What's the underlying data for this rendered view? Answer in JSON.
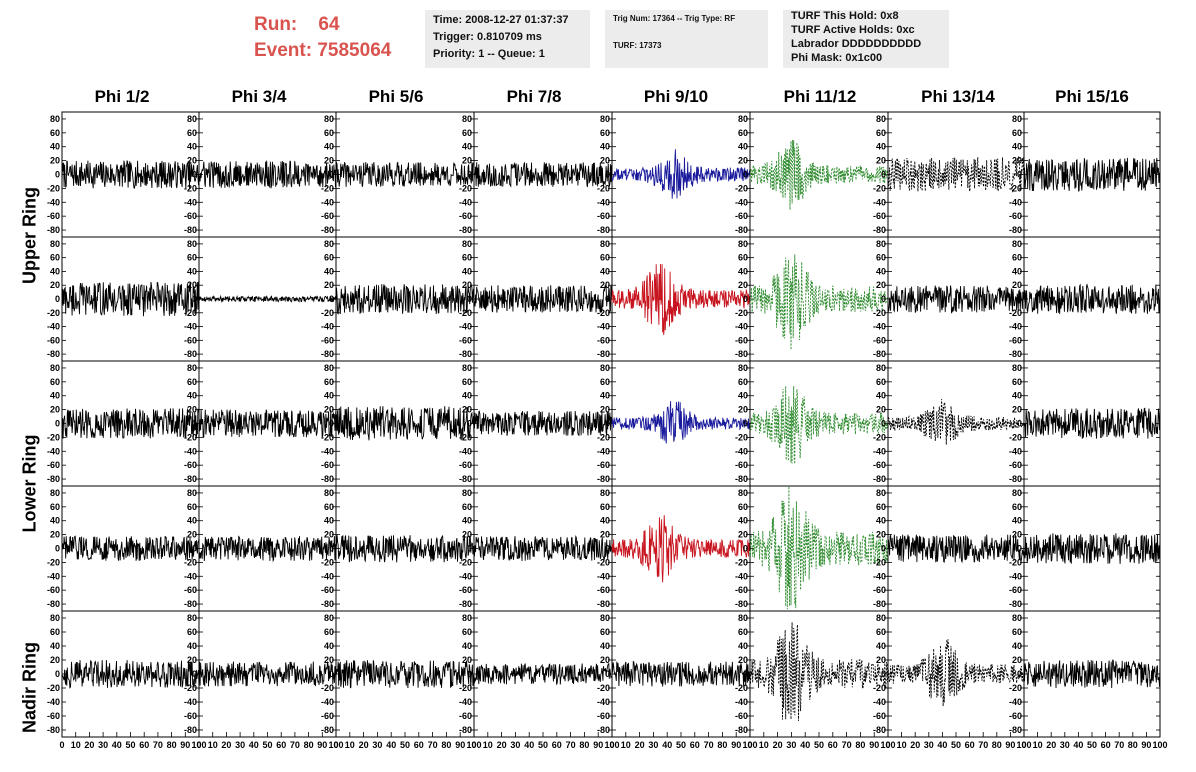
{
  "header": {
    "run_label": "Run:",
    "run_value": "64",
    "event_label": "Event:",
    "event_value": "7585064",
    "time_line": "Time: 2008-12-27 01:37:37",
    "trigger_line": "Trigger: 0.810709 ms",
    "priority_line": "Priority: 1 -- Queue: 1",
    "trig_num_line": "Trig Num: 17364 -- Trig Type: RF",
    "turf_line": "TURF: 17373",
    "turf_hold_line": "TURF This Hold: 0x8",
    "turf_active_line": "TURF Active Holds: 0xc",
    "labrador_line": "Labrador DDDDDDDDDD",
    "phi_mask_line": "Phi Mask: 0x1c00"
  },
  "columns": [
    "Phi 1/2",
    "Phi 3/4",
    "Phi 5/6",
    "Phi 7/8",
    "Phi 9/10",
    "Phi 11/12",
    "Phi 13/14",
    "Phi 15/16"
  ],
  "ring_labels": [
    "Upper Ring",
    "Lower Ring",
    "Nadir Ring"
  ],
  "colors": {
    "black": "#000000",
    "blue": "#1a1a9c",
    "red": "#c8141e",
    "green": "#2e8b2e",
    "header_red": "#d9534f",
    "panel_bg": "#ececec"
  },
  "chart_data": {
    "type": "line",
    "description_rows": 5,
    "description_cols": 8,
    "x_ticks": [
      "0",
      "10",
      "20",
      "30",
      "40",
      "50",
      "60",
      "70",
      "80",
      "90",
      "100"
    ],
    "y_ticks": [
      "80",
      "60",
      "40",
      "20",
      "0",
      "-20",
      "-40",
      "-60",
      "-80"
    ],
    "xlim": [
      0,
      100
    ],
    "ylim": [
      -90,
      90
    ],
    "row_colors": [
      [
        "black",
        "black",
        "black",
        "black",
        "blue",
        "green",
        "black",
        "black"
      ],
      [
        "black",
        "black",
        "black",
        "black",
        "red",
        "green",
        "black",
        "black"
      ],
      [
        "black",
        "black",
        "black",
        "black",
        "blue",
        "green",
        "black",
        "black"
      ],
      [
        "black",
        "black",
        "black",
        "black",
        "red",
        "green",
        "black",
        "black"
      ],
      [
        "black",
        "black",
        "black",
        "black",
        "black",
        "black",
        "black",
        "black"
      ]
    ],
    "row_dashed": [
      [
        false,
        false,
        false,
        false,
        false,
        true,
        true,
        false
      ],
      [
        false,
        false,
        false,
        false,
        false,
        true,
        false,
        false
      ],
      [
        false,
        false,
        false,
        false,
        false,
        true,
        true,
        false
      ],
      [
        false,
        false,
        false,
        false,
        false,
        true,
        false,
        false
      ],
      [
        false,
        false,
        false,
        false,
        false,
        true,
        true,
        false
      ]
    ],
    "amplitude": [
      [
        20,
        20,
        18,
        18,
        28,
        38,
        25,
        24
      ],
      [
        25,
        4,
        22,
        20,
        40,
        55,
        20,
        22
      ],
      [
        22,
        20,
        25,
        18,
        25,
        45,
        28,
        22
      ],
      [
        18,
        18,
        20,
        18,
        38,
        70,
        20,
        22
      ],
      [
        20,
        18,
        20,
        15,
        18,
        60,
        40,
        20
      ]
    ],
    "burst_center": [
      [
        null,
        null,
        null,
        null,
        45,
        30,
        null,
        null
      ],
      [
        null,
        null,
        null,
        null,
        35,
        30,
        null,
        null
      ],
      [
        null,
        null,
        null,
        null,
        45,
        30,
        40,
        null
      ],
      [
        null,
        null,
        null,
        null,
        35,
        30,
        null,
        null
      ],
      [
        null,
        null,
        null,
        null,
        null,
        30,
        40,
        null
      ]
    ]
  }
}
